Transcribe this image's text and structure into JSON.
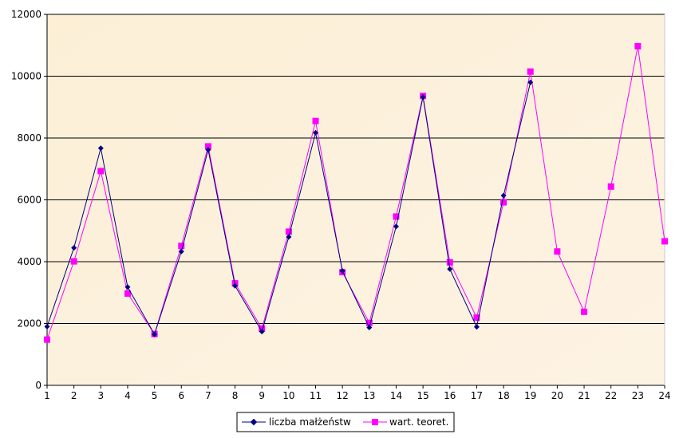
{
  "chart_data": {
    "type": "line",
    "title": "",
    "xlabel": "",
    "ylabel": "",
    "x": [
      1,
      2,
      3,
      4,
      5,
      6,
      7,
      8,
      9,
      10,
      11,
      12,
      13,
      14,
      15,
      16,
      17,
      18,
      19,
      20,
      21,
      22,
      23,
      24
    ],
    "ylim": [
      0,
      12000
    ],
    "yticks": [
      0,
      2000,
      4000,
      6000,
      8000,
      10000,
      12000
    ],
    "grid": "horizontal",
    "plot_background": "#FDF0D8",
    "legend_position": "bottom-center",
    "series": [
      {
        "name": "liczba małżeństw",
        "color": "#000080",
        "marker": "diamond",
        "x": [
          1,
          2,
          3,
          4,
          5,
          6,
          7,
          8,
          9,
          10,
          11,
          12,
          13,
          14,
          15,
          16,
          17,
          18,
          19
        ],
        "values": [
          1900,
          4450,
          7670,
          3180,
          1650,
          4330,
          7620,
          3220,
          1740,
          4800,
          8170,
          3700,
          1870,
          5140,
          9330,
          3760,
          1890,
          6140,
          9800
        ]
      },
      {
        "name": "wart. teoret.",
        "color": "#FF00FF",
        "marker": "square",
        "x": [
          1,
          2,
          3,
          4,
          5,
          6,
          7,
          8,
          9,
          10,
          11,
          12,
          13,
          14,
          15,
          16,
          17,
          18,
          19,
          20,
          21,
          22,
          23,
          24
        ],
        "values": [
          1480,
          4010,
          6930,
          2970,
          1660,
          4510,
          7730,
          3300,
          1840,
          4970,
          8550,
          3660,
          2020,
          5460,
          9360,
          3980,
          2190,
          5920,
          10150,
          4330,
          2380,
          6430,
          10970,
          4660
        ]
      }
    ]
  }
}
